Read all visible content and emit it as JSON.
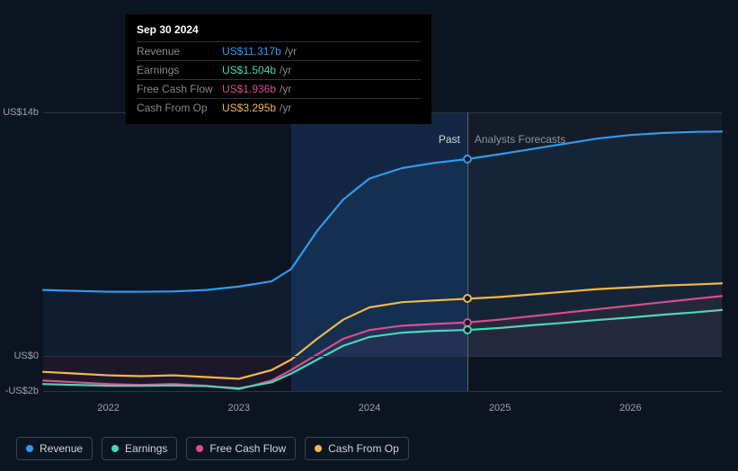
{
  "chart": {
    "type": "line",
    "background_color": "#0d1421",
    "grid_color": "#2a3442",
    "axis_label_color": "#9ba3af",
    "font_size_axis": 11,
    "y_axis": {
      "min": -2,
      "max": 14,
      "ticks": [
        {
          "value": 14,
          "label": "US$14b"
        },
        {
          "value": 0,
          "label": "US$0"
        },
        {
          "value": -2,
          "label": "-US$2b"
        }
      ]
    },
    "x_axis": {
      "min": 2021.5,
      "max": 2026.7,
      "ticks": [
        {
          "value": 2022,
          "label": "2022"
        },
        {
          "value": 2023,
          "label": "2023"
        },
        {
          "value": 2024,
          "label": "2024"
        },
        {
          "value": 2025,
          "label": "2025"
        },
        {
          "value": 2026,
          "label": "2026"
        }
      ]
    },
    "cursor_x": 2024.75,
    "regions": {
      "past": {
        "label": "Past",
        "end_x": 2024.75,
        "label_color": "#d0d4da"
      },
      "forecast": {
        "label": "Analysts Forecasts",
        "start_x": 2024.75,
        "label_color": "#8a93a0",
        "overlay_fill": "rgba(120,130,145,0.08)"
      }
    },
    "past_shade": {
      "color": "rgba(50,130,230,0.18)",
      "from_x": 2023.4
    },
    "line_width": 2.2,
    "series": [
      {
        "key": "revenue",
        "name": "Revenue",
        "color": "#2e9bf0",
        "area_fill": "rgba(46,155,240,0.07)",
        "data": [
          [
            2021.5,
            3.8
          ],
          [
            2021.75,
            3.75
          ],
          [
            2022,
            3.7
          ],
          [
            2022.25,
            3.7
          ],
          [
            2022.5,
            3.72
          ],
          [
            2022.75,
            3.8
          ],
          [
            2023,
            4.0
          ],
          [
            2023.25,
            4.3
          ],
          [
            2023.4,
            5.0
          ],
          [
            2023.6,
            7.2
          ],
          [
            2023.8,
            9.0
          ],
          [
            2024,
            10.2
          ],
          [
            2024.25,
            10.8
          ],
          [
            2024.5,
            11.1
          ],
          [
            2024.75,
            11.317
          ],
          [
            2025,
            11.6
          ],
          [
            2025.25,
            11.9
          ],
          [
            2025.5,
            12.2
          ],
          [
            2025.75,
            12.5
          ],
          [
            2026,
            12.7
          ],
          [
            2026.25,
            12.82
          ],
          [
            2026.5,
            12.88
          ],
          [
            2026.7,
            12.9
          ]
        ]
      },
      {
        "key": "cash_from_op",
        "name": "Cash From Op",
        "color": "#f0b74a",
        "data": [
          [
            2021.5,
            -0.9
          ],
          [
            2021.75,
            -1.0
          ],
          [
            2022,
            -1.1
          ],
          [
            2022.25,
            -1.15
          ],
          [
            2022.5,
            -1.1
          ],
          [
            2022.75,
            -1.2
          ],
          [
            2023,
            -1.3
          ],
          [
            2023.25,
            -0.8
          ],
          [
            2023.4,
            -0.2
          ],
          [
            2023.6,
            1.0
          ],
          [
            2023.8,
            2.1
          ],
          [
            2024,
            2.8
          ],
          [
            2024.25,
            3.1
          ],
          [
            2024.5,
            3.2
          ],
          [
            2024.75,
            3.295
          ],
          [
            2025,
            3.4
          ],
          [
            2025.25,
            3.55
          ],
          [
            2025.5,
            3.7
          ],
          [
            2025.75,
            3.85
          ],
          [
            2026,
            3.95
          ],
          [
            2026.25,
            4.05
          ],
          [
            2026.5,
            4.12
          ],
          [
            2026.7,
            4.18
          ]
        ]
      },
      {
        "key": "free_cash_flow",
        "name": "Free Cash Flow",
        "color": "#d94e8e",
        "area_fill": "rgba(217,78,142,0.08)",
        "data": [
          [
            2021.5,
            -1.4
          ],
          [
            2021.75,
            -1.5
          ],
          [
            2022,
            -1.6
          ],
          [
            2022.25,
            -1.65
          ],
          [
            2022.5,
            -1.6
          ],
          [
            2022.75,
            -1.7
          ],
          [
            2023,
            -1.9
          ],
          [
            2023.25,
            -1.4
          ],
          [
            2023.4,
            -0.8
          ],
          [
            2023.6,
            0.1
          ],
          [
            2023.8,
            1.0
          ],
          [
            2024,
            1.5
          ],
          [
            2024.25,
            1.75
          ],
          [
            2024.5,
            1.85
          ],
          [
            2024.75,
            1.936
          ],
          [
            2025,
            2.1
          ],
          [
            2025.25,
            2.3
          ],
          [
            2025.5,
            2.5
          ],
          [
            2025.75,
            2.7
          ],
          [
            2026,
            2.9
          ],
          [
            2026.25,
            3.1
          ],
          [
            2026.5,
            3.3
          ],
          [
            2026.7,
            3.45
          ]
        ]
      },
      {
        "key": "earnings",
        "name": "Earnings",
        "color": "#4bd6b8",
        "data": [
          [
            2021.5,
            -1.6
          ],
          [
            2021.75,
            -1.65
          ],
          [
            2022,
            -1.7
          ],
          [
            2022.25,
            -1.7
          ],
          [
            2022.5,
            -1.68
          ],
          [
            2022.75,
            -1.72
          ],
          [
            2023,
            -1.85
          ],
          [
            2023.25,
            -1.5
          ],
          [
            2023.4,
            -1.0
          ],
          [
            2023.6,
            -0.2
          ],
          [
            2023.8,
            0.6
          ],
          [
            2024,
            1.1
          ],
          [
            2024.25,
            1.35
          ],
          [
            2024.5,
            1.45
          ],
          [
            2024.75,
            1.504
          ],
          [
            2025,
            1.62
          ],
          [
            2025.25,
            1.78
          ],
          [
            2025.5,
            1.92
          ],
          [
            2025.75,
            2.08
          ],
          [
            2026,
            2.22
          ],
          [
            2026.25,
            2.38
          ],
          [
            2026.5,
            2.52
          ],
          [
            2026.7,
            2.65
          ]
        ]
      }
    ],
    "markers_at_cursor": [
      {
        "series": "revenue",
        "color": "#2e9bf0",
        "value": 11.317
      },
      {
        "series": "cash_from_op",
        "color": "#f0b74a",
        "value": 3.295
      },
      {
        "series": "free_cash_flow",
        "color": "#d94e8e",
        "value": 1.936
      },
      {
        "series": "earnings",
        "color": "#4bd6b8",
        "value": 1.504
      }
    ]
  },
  "tooltip": {
    "title": "Sep 30 2024",
    "unit_suffix": "/yr",
    "rows": [
      {
        "key": "Revenue",
        "value": "US$11.317b",
        "color": "#2e9bf0"
      },
      {
        "key": "Earnings",
        "value": "US$1.504b",
        "color": "#4bd6b8"
      },
      {
        "key": "Free Cash Flow",
        "value": "US$1.936b",
        "color": "#d94e8e"
      },
      {
        "key": "Cash From Op",
        "value": "US$3.295b",
        "color": "#f0b74a"
      }
    ]
  },
  "legend": {
    "items": [
      {
        "key": "revenue",
        "label": "Revenue",
        "color": "#2e9bf0"
      },
      {
        "key": "earnings",
        "label": "Earnings",
        "color": "#4bd6b8"
      },
      {
        "key": "free_cash_flow",
        "label": "Free Cash Flow",
        "color": "#d94e8e"
      },
      {
        "key": "cash_from_op",
        "label": "Cash From Op",
        "color": "#f0b74a"
      }
    ]
  }
}
